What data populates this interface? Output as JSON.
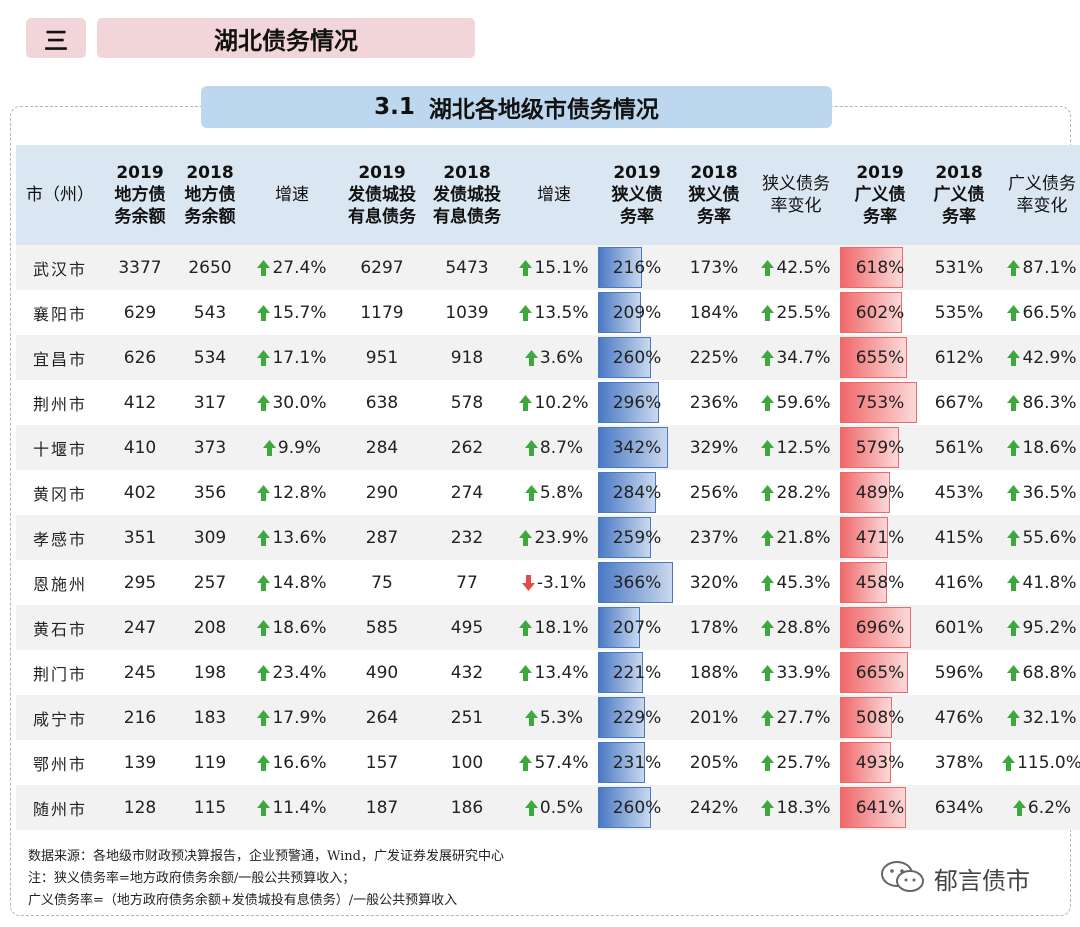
{
  "section": {
    "number": "三",
    "title": "湖北债务情况"
  },
  "subtitle": {
    "number": "3.1",
    "text": "湖北各地级市债务情况"
  },
  "headers": [
    "市（州）",
    "2019\n地方债\n务余额",
    "2018\n地方债\n务余额",
    "增速",
    "2019\n发债城投\n有息债务",
    "2018\n发债城投\n有息债务",
    "增速",
    "2019\n狭义债\n务率",
    "2018\n狭义债\n务率",
    "狭义债务\n率变化",
    "2019\n广义债\n务率",
    "2018\n广义债\n务率",
    "广义债务\n率变化"
  ],
  "rows": [
    {
      "city": "武汉市",
      "d2019": "3377",
      "d2018": "2650",
      "g1": "27.4%",
      "c2019": "6297",
      "c2018": "5473",
      "g2": "15.1%",
      "n2019": "216%",
      "n2018": "173%",
      "nchg": "42.5%",
      "b2019": "618%",
      "b2018": "531%",
      "bchg": "87.1%"
    },
    {
      "city": "襄阳市",
      "d2019": "629",
      "d2018": "543",
      "g1": "15.7%",
      "c2019": "1179",
      "c2018": "1039",
      "g2": "13.5%",
      "n2019": "209%",
      "n2018": "184%",
      "nchg": "25.5%",
      "b2019": "602%",
      "b2018": "535%",
      "bchg": "66.5%"
    },
    {
      "city": "宜昌市",
      "d2019": "626",
      "d2018": "534",
      "g1": "17.1%",
      "c2019": "951",
      "c2018": "918",
      "g2": "3.6%",
      "n2019": "260%",
      "n2018": "225%",
      "nchg": "34.7%",
      "b2019": "655%",
      "b2018": "612%",
      "bchg": "42.9%"
    },
    {
      "city": "荆州市",
      "d2019": "412",
      "d2018": "317",
      "g1": "30.0%",
      "c2019": "638",
      "c2018": "578",
      "g2": "10.2%",
      "n2019": "296%",
      "n2018": "236%",
      "nchg": "59.6%",
      "b2019": "753%",
      "b2018": "667%",
      "bchg": "86.3%"
    },
    {
      "city": "十堰市",
      "d2019": "410",
      "d2018": "373",
      "g1": "9.9%",
      "c2019": "284",
      "c2018": "262",
      "g2": "8.7%",
      "n2019": "342%",
      "n2018": "329%",
      "nchg": "12.5%",
      "b2019": "579%",
      "b2018": "561%",
      "bchg": "18.6%"
    },
    {
      "city": "黄冈市",
      "d2019": "402",
      "d2018": "356",
      "g1": "12.8%",
      "c2019": "290",
      "c2018": "274",
      "g2": "5.8%",
      "n2019": "284%",
      "n2018": "256%",
      "nchg": "28.2%",
      "b2019": "489%",
      "b2018": "453%",
      "bchg": "36.5%"
    },
    {
      "city": "孝感市",
      "d2019": "351",
      "d2018": "309",
      "g1": "13.6%",
      "c2019": "287",
      "c2018": "232",
      "g2": "23.9%",
      "n2019": "259%",
      "n2018": "237%",
      "nchg": "21.8%",
      "b2019": "471%",
      "b2018": "415%",
      "bchg": "55.6%"
    },
    {
      "city": "恩施州",
      "d2019": "295",
      "d2018": "257",
      "g1": "14.8%",
      "c2019": "75",
      "c2018": "77",
      "g2": "-3.1%",
      "n2019": "366%",
      "n2018": "320%",
      "nchg": "45.3%",
      "b2019": "458%",
      "b2018": "416%",
      "bchg": "41.8%"
    },
    {
      "city": "黄石市",
      "d2019": "247",
      "d2018": "208",
      "g1": "18.6%",
      "c2019": "585",
      "c2018": "495",
      "g2": "18.1%",
      "n2019": "207%",
      "n2018": "178%",
      "nchg": "28.8%",
      "b2019": "696%",
      "b2018": "601%",
      "bchg": "95.2%"
    },
    {
      "city": "荆门市",
      "d2019": "245",
      "d2018": "198",
      "g1": "23.4%",
      "c2019": "490",
      "c2018": "432",
      "g2": "13.4%",
      "n2019": "221%",
      "n2018": "188%",
      "nchg": "33.9%",
      "b2019": "665%",
      "b2018": "596%",
      "bchg": "68.8%"
    },
    {
      "city": "咸宁市",
      "d2019": "216",
      "d2018": "183",
      "g1": "17.9%",
      "c2019": "264",
      "c2018": "251",
      "g2": "5.3%",
      "n2019": "229%",
      "n2018": "201%",
      "nchg": "27.7%",
      "b2019": "508%",
      "b2018": "476%",
      "bchg": "32.1%"
    },
    {
      "city": "鄂州市",
      "d2019": "139",
      "d2018": "119",
      "g1": "16.6%",
      "c2019": "157",
      "c2018": "100",
      "g2": "57.4%",
      "n2019": "231%",
      "n2018": "205%",
      "nchg": "25.7%",
      "b2019": "493%",
      "b2018": "378%",
      "bchg": "115.0%"
    },
    {
      "city": "随州市",
      "d2019": "128",
      "d2018": "115",
      "g1": "11.4%",
      "c2019": "187",
      "c2018": "186",
      "g2": "0.5%",
      "n2019": "260%",
      "n2018": "242%",
      "nchg": "18.3%",
      "b2019": "641%",
      "b2018": "634%",
      "bchg": "6.2%"
    }
  ],
  "colors": {
    "up_arrow": "#3da83d",
    "down_arrow": "#e14b4b",
    "narrow_bar": "#4a79c4",
    "broad_bar": "#f0686a"
  },
  "notes": [
    "数据来源：各地级市财政预决算报告，企业预警通，Wind，广发证券发展研究中心",
    "注：狭义债务率=地方政府债务余额/一般公共预算收入；",
    "广义债务率=（地方政府债务余额+发债城投有息债务）/一般公共预算收入"
  ],
  "watermark": {
    "icon": "wechat-icon",
    "text": "郁言债市"
  }
}
